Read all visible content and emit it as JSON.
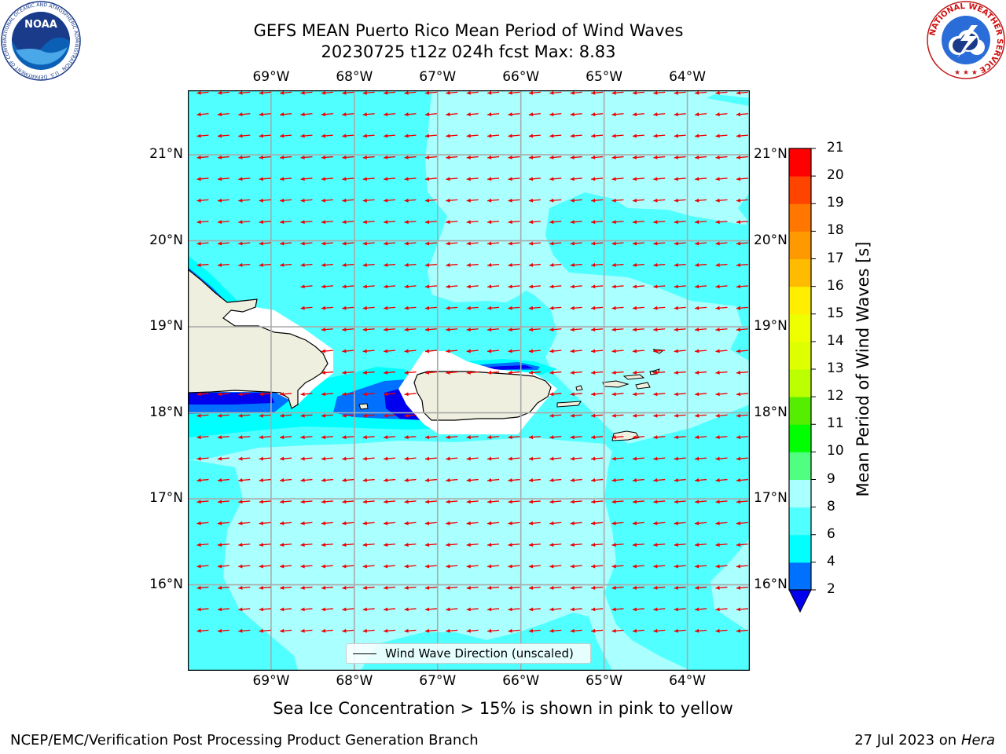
{
  "title_line1": "GEFS MEAN Puerto Rico Mean Period of Wind Waves",
  "title_line2": "20230725 t12z 024h fcst   Max: 8.83",
  "longitude_labels": [
    "69°W",
    "68°W",
    "67°W",
    "66°W",
    "65°W",
    "64°W"
  ],
  "latitude_labels": [
    "21°N",
    "20°N",
    "19°N",
    "18°N",
    "17°N",
    "16°N"
  ],
  "colorbar": {
    "title": "Mean Period of Wind Waves [s]",
    "ticks": [
      "2",
      "4",
      "6",
      "8",
      "9",
      "10",
      "11",
      "12",
      "13",
      "14",
      "15",
      "16",
      "17",
      "18",
      "19",
      "20",
      "21"
    ],
    "levels": [
      {
        "from": 0,
        "to": 2,
        "color": "#0000ee"
      },
      {
        "from": 2,
        "to": 4,
        "color": "#0070ff"
      },
      {
        "from": 4,
        "to": 6,
        "color": "#00ffff"
      },
      {
        "from": 6,
        "to": 8,
        "color": "#50ffff"
      },
      {
        "from": 8,
        "to": 9,
        "color": "#aaffff"
      },
      {
        "from": 9,
        "to": 10,
        "color": "#50ff80"
      },
      {
        "from": 10,
        "to": 11,
        "color": "#00ff00"
      },
      {
        "from": 11,
        "to": 12,
        "color": "#55ee00"
      },
      {
        "from": 12,
        "to": 13,
        "color": "#bbff00"
      },
      {
        "from": 13,
        "to": 14,
        "color": "#ddff00"
      },
      {
        "from": 14,
        "to": 15,
        "color": "#f0ff00"
      },
      {
        "from": 15,
        "to": 16,
        "color": "#ffee00"
      },
      {
        "from": 16,
        "to": 17,
        "color": "#ffbb00"
      },
      {
        "from": 17,
        "to": 18,
        "color": "#ff9900"
      },
      {
        "from": 18,
        "to": 19,
        "color": "#ff7700"
      },
      {
        "from": 19,
        "to": 20,
        "color": "#ff4400"
      },
      {
        "from": 20,
        "to": 21,
        "color": "#ff0000"
      }
    ]
  },
  "legend_label": "Wind Wave Direction (unscaled)",
  "sea_ice_note": "Sea Ice Concentration > 15% is shown in pink to yellow",
  "footer_left": "NCEP/EMC/Verification Post Processing Product Generation Branch",
  "footer_date": "27 Jul 2023 on",
  "footer_host": "Hera",
  "logos": {
    "noaa": {
      "text": "NOAA",
      "ring_text": "NATIONAL OCEANIC AND ATMOSPHERIC ADMINISTRATION · U.S. DEPARTMENT OF COMMERCE"
    },
    "nws": {
      "ring_text": "NATIONAL WEATHER SERVICE"
    }
  },
  "colors": {
    "ocean_light": "#aaffff",
    "ocean_mid": "#50ffff",
    "ocean_cyan": "#00ffff",
    "ocean_blue": "#0070ff",
    "ocean_dark": "#0000ee",
    "land": "#efefdf",
    "arrow": "#ee0000",
    "grid": "#aaaaaa"
  },
  "map_extent": {
    "lon_min": -70.0,
    "lon_max": -63.25,
    "lat_min": 15.0,
    "lat_max": 21.75
  },
  "wind_wave_direction_deg_toward": 265
}
